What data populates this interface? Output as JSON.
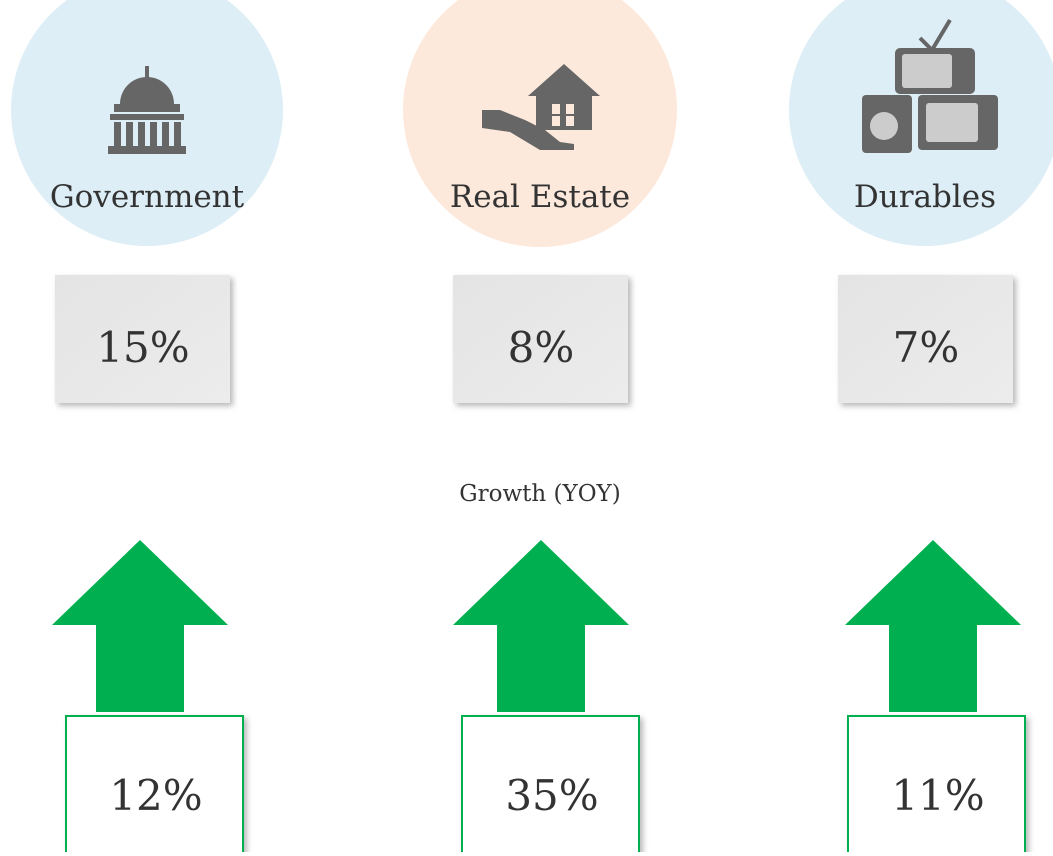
{
  "items": [
    {
      "label": "Government",
      "share": "15%",
      "growth": "12%"
    },
    {
      "label": "Real Estate",
      "share": "8%",
      "growth": "35%"
    },
    {
      "label": "Durables",
      "share": "7%",
      "growth": "11%"
    }
  ],
  "growth_label": "Growth (YOY)"
}
